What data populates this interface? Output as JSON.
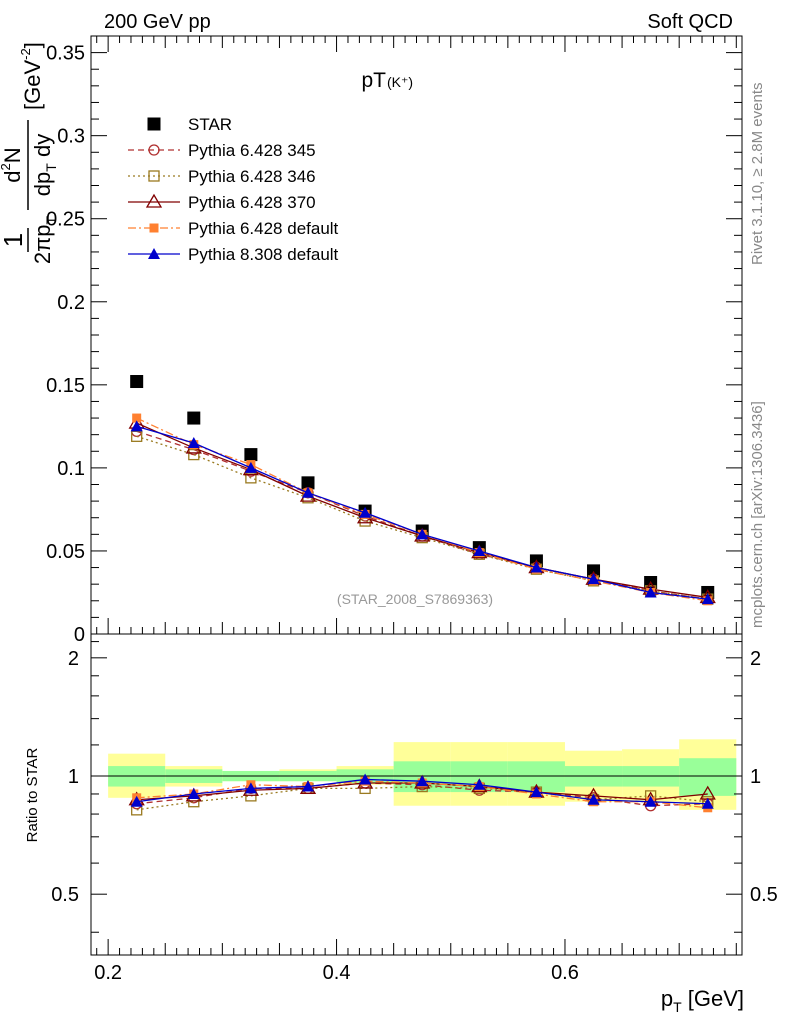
{
  "header": {
    "left": "200 GeV pp",
    "right": "Soft QCD"
  },
  "side_labels": {
    "rivet": "Rivet 3.1.10, ≥ 2.8M events",
    "mcplots": "mcplots.cern.ch [arXiv:1306.3436]"
  },
  "colors": {
    "star": "#000000",
    "p345": "#b03030",
    "p346": "#9a7a20",
    "p370": "#800000",
    "p6def": "#ff8030",
    "p8def": "#0000cc",
    "band_inner": "#99ff99",
    "band_outer": "#ffff99"
  },
  "chart_data": [
    {
      "type": "scatter",
      "title_main": "pT",
      "title_sub": "(K⁺)",
      "ylabel": "1/2πp_T d²N/dp_T dy [GeV⁻²]",
      "ylim": [
        0,
        0.36
      ],
      "xlim": [
        0.185,
        0.755
      ],
      "yticks": [
        0,
        0.05,
        0.1,
        0.15,
        0.2,
        0.25,
        0.3,
        0.35
      ],
      "ytick_labels": [
        "0",
        "0.05",
        "0.1",
        "0.15",
        "0.2",
        "0.25",
        "0.3",
        "0.35"
      ],
      "watermark": "(STAR_2008_S7869363)",
      "x": [
        0.225,
        0.275,
        0.325,
        0.375,
        0.425,
        0.475,
        0.525,
        0.575,
        0.625,
        0.675,
        0.725
      ],
      "legend_position": "top-left",
      "series": [
        {
          "name": "STAR",
          "key": "star",
          "marker": "square",
          "line": "none",
          "values": [
            0.152,
            0.13,
            0.108,
            0.091,
            0.074,
            0.062,
            0.052,
            0.044,
            0.038,
            0.031,
            0.025
          ]
        },
        {
          "name": "Pythia 6.428 345",
          "key": "p345",
          "marker": "circle-open",
          "line": "dashed",
          "values": [
            0.122,
            0.111,
            0.098,
            0.085,
            0.071,
            0.059,
            0.048,
            0.04,
            0.033,
            0.026,
            0.021
          ]
        },
        {
          "name": "Pythia 6.428 346",
          "key": "p346",
          "marker": "square-open",
          "line": "dotted",
          "values": [
            0.119,
            0.108,
            0.094,
            0.082,
            0.068,
            0.058,
            0.048,
            0.039,
            0.032,
            0.026,
            0.021
          ]
        },
        {
          "name": "Pythia 6.428 370",
          "key": "p370",
          "marker": "triangle-open",
          "line": "solid",
          "values": [
            0.127,
            0.112,
            0.099,
            0.083,
            0.07,
            0.059,
            0.049,
            0.04,
            0.033,
            0.027,
            0.022
          ]
        },
        {
          "name": "Pythia 6.428 default",
          "key": "p6def",
          "marker": "square-small",
          "line": "dashdot",
          "values": [
            0.13,
            0.114,
            0.102,
            0.085,
            0.072,
            0.06,
            0.049,
            0.039,
            0.032,
            0.025,
            0.02
          ]
        },
        {
          "name": "Pythia 8.308 default",
          "key": "p8def",
          "marker": "triangle-filled",
          "line": "solid",
          "values": [
            0.125,
            0.115,
            0.1,
            0.085,
            0.073,
            0.06,
            0.05,
            0.04,
            0.033,
            0.025,
            0.021
          ]
        }
      ]
    },
    {
      "type": "line",
      "ylabel": "Ratio to STAR",
      "xlabel": "p_T [GeV]",
      "ylim": [
        0.35,
        2.3
      ],
      "yscale": "log",
      "xlim": [
        0.185,
        0.755
      ],
      "yticks": [
        0.5,
        1,
        2
      ],
      "ytick_labels": [
        "0.5",
        "1",
        "2"
      ],
      "xticks": [
        0.2,
        0.4,
        0.6
      ],
      "xtick_labels": [
        "0.2",
        "0.4",
        "0.6"
      ],
      "reference_line": 1,
      "x": [
        0.225,
        0.275,
        0.325,
        0.375,
        0.425,
        0.475,
        0.525,
        0.575,
        0.625,
        0.675,
        0.725
      ],
      "bands": {
        "edges": [
          0.2,
          0.25,
          0.3,
          0.35,
          0.4,
          0.45,
          0.5,
          0.55,
          0.6,
          0.65,
          0.7,
          0.75
        ],
        "inner_low": [
          0.94,
          0.96,
          0.97,
          0.97,
          0.96,
          0.91,
          0.91,
          0.91,
          0.94,
          0.94,
          0.89
        ],
        "inner_high": [
          1.06,
          1.04,
          1.03,
          1.03,
          1.04,
          1.09,
          1.09,
          1.09,
          1.06,
          1.06,
          1.11
        ],
        "outer_low": [
          0.88,
          0.94,
          0.97,
          0.97,
          0.95,
          0.84,
          0.84,
          0.84,
          0.86,
          0.86,
          0.82
        ],
        "outer_high": [
          1.14,
          1.06,
          1.03,
          1.04,
          1.06,
          1.22,
          1.22,
          1.22,
          1.16,
          1.17,
          1.24
        ]
      },
      "series": [
        {
          "name": "Pythia 6.428 345",
          "key": "p345",
          "marker": "circle-open",
          "line": "dashed",
          "values": [
            0.85,
            0.88,
            0.93,
            0.93,
            0.96,
            0.95,
            0.92,
            0.91,
            0.88,
            0.84,
            0.85
          ]
        },
        {
          "name": "Pythia 6.428 346",
          "key": "p346",
          "marker": "square-open",
          "line": "dotted",
          "values": [
            0.82,
            0.86,
            0.89,
            0.93,
            0.93,
            0.94,
            0.93,
            0.91,
            0.87,
            0.89,
            0.86
          ]
        },
        {
          "name": "Pythia 6.428 370",
          "key": "p370",
          "marker": "triangle-open",
          "line": "solid",
          "values": [
            0.87,
            0.89,
            0.92,
            0.93,
            0.96,
            0.96,
            0.94,
            0.91,
            0.89,
            0.87,
            0.9
          ]
        },
        {
          "name": "Pythia 6.428 default",
          "key": "p6def",
          "marker": "square-small",
          "line": "dashdot",
          "values": [
            0.88,
            0.9,
            0.95,
            0.94,
            0.97,
            0.96,
            0.94,
            0.9,
            0.86,
            0.86,
            0.83
          ]
        },
        {
          "name": "Pythia 8.308 default",
          "key": "p8def",
          "marker": "triangle-filled",
          "line": "solid",
          "values": [
            0.86,
            0.9,
            0.93,
            0.94,
            0.98,
            0.97,
            0.95,
            0.91,
            0.87,
            0.86,
            0.85
          ]
        }
      ]
    }
  ]
}
